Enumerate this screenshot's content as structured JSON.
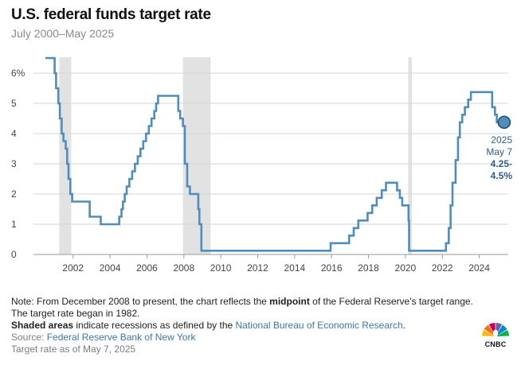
{
  "title": "U.S. federal funds target rate",
  "subtitle": "July 2000–May 2025",
  "chart_data": {
    "type": "line",
    "title": "U.S. federal funds target rate",
    "subtitle": "July 2000–May 2025",
    "xlabel": "",
    "ylabel": "",
    "xlim": [
      2000.5,
      2025.4
    ],
    "ylim": [
      0,
      6.5
    ],
    "y_ticks": [
      0,
      1,
      2,
      3,
      4,
      5,
      6
    ],
    "y_tick_labels": [
      "0",
      "1",
      "2",
      "3",
      "4",
      "5",
      "6%"
    ],
    "x_ticks": [
      2002,
      2004,
      2006,
      2008,
      2010,
      2012,
      2014,
      2016,
      2018,
      2020,
      2022,
      2024
    ],
    "x_tick_labels": [
      "2002",
      "2004",
      "2006",
      "2008",
      "2010",
      "2012",
      "2014",
      "2016",
      "2018",
      "2020",
      "2022",
      "2024"
    ],
    "grid": "horizontal",
    "recessions": [
      [
        2001.25,
        2001.9
      ],
      [
        2007.95,
        2009.45
      ],
      [
        2020.15,
        2020.35
      ]
    ],
    "series": [
      {
        "name": "Federal funds target rate",
        "color": "#4f8dbd",
        "points": [
          [
            2000.5,
            6.5
          ],
          [
            2001.0,
            6.5
          ],
          [
            2001.0,
            6.0
          ],
          [
            2001.08,
            6.0
          ],
          [
            2001.08,
            5.5
          ],
          [
            2001.2,
            5.5
          ],
          [
            2001.2,
            5.0
          ],
          [
            2001.28,
            5.0
          ],
          [
            2001.28,
            4.5
          ],
          [
            2001.38,
            4.5
          ],
          [
            2001.38,
            4.0
          ],
          [
            2001.48,
            4.0
          ],
          [
            2001.48,
            3.75
          ],
          [
            2001.6,
            3.75
          ],
          [
            2001.6,
            3.5
          ],
          [
            2001.68,
            3.5
          ],
          [
            2001.68,
            3.0
          ],
          [
            2001.75,
            3.0
          ],
          [
            2001.75,
            2.5
          ],
          [
            2001.85,
            2.5
          ],
          [
            2001.85,
            2.0
          ],
          [
            2001.95,
            2.0
          ],
          [
            2001.95,
            1.75
          ],
          [
            2002.9,
            1.75
          ],
          [
            2002.9,
            1.25
          ],
          [
            2003.5,
            1.25
          ],
          [
            2003.5,
            1.0
          ],
          [
            2004.5,
            1.0
          ],
          [
            2004.5,
            1.25
          ],
          [
            2004.62,
            1.25
          ],
          [
            2004.62,
            1.5
          ],
          [
            2004.7,
            1.5
          ],
          [
            2004.7,
            1.75
          ],
          [
            2004.8,
            1.75
          ],
          [
            2004.8,
            2.0
          ],
          [
            2004.9,
            2.0
          ],
          [
            2004.9,
            2.25
          ],
          [
            2005.05,
            2.25
          ],
          [
            2005.05,
            2.5
          ],
          [
            2005.2,
            2.5
          ],
          [
            2005.2,
            2.75
          ],
          [
            2005.35,
            2.75
          ],
          [
            2005.35,
            3.0
          ],
          [
            2005.5,
            3.0
          ],
          [
            2005.5,
            3.25
          ],
          [
            2005.65,
            3.25
          ],
          [
            2005.65,
            3.5
          ],
          [
            2005.8,
            3.5
          ],
          [
            2005.8,
            3.75
          ],
          [
            2005.95,
            3.75
          ],
          [
            2005.95,
            4.0
          ],
          [
            2006.1,
            4.0
          ],
          [
            2006.1,
            4.25
          ],
          [
            2006.25,
            4.25
          ],
          [
            2006.25,
            4.5
          ],
          [
            2006.4,
            4.5
          ],
          [
            2006.4,
            4.75
          ],
          [
            2006.5,
            4.75
          ],
          [
            2006.5,
            5.0
          ],
          [
            2006.6,
            5.0
          ],
          [
            2006.6,
            5.25
          ],
          [
            2007.7,
            5.25
          ],
          [
            2007.7,
            4.75
          ],
          [
            2007.8,
            4.75
          ],
          [
            2007.8,
            4.5
          ],
          [
            2007.95,
            4.5
          ],
          [
            2007.95,
            4.25
          ],
          [
            2008.05,
            4.25
          ],
          [
            2008.05,
            3.0
          ],
          [
            2008.18,
            3.0
          ],
          [
            2008.18,
            2.25
          ],
          [
            2008.33,
            2.25
          ],
          [
            2008.33,
            2.0
          ],
          [
            2008.78,
            2.0
          ],
          [
            2008.78,
            1.5
          ],
          [
            2008.84,
            1.5
          ],
          [
            2008.84,
            1.0
          ],
          [
            2008.95,
            1.0
          ],
          [
            2008.95,
            0.125
          ],
          [
            2015.95,
            0.125
          ],
          [
            2015.95,
            0.375
          ],
          [
            2016.95,
            0.375
          ],
          [
            2016.95,
            0.625
          ],
          [
            2017.2,
            0.625
          ],
          [
            2017.2,
            0.875
          ],
          [
            2017.45,
            0.875
          ],
          [
            2017.45,
            1.125
          ],
          [
            2017.95,
            1.125
          ],
          [
            2017.95,
            1.375
          ],
          [
            2018.2,
            1.375
          ],
          [
            2018.2,
            1.625
          ],
          [
            2018.45,
            1.625
          ],
          [
            2018.45,
            1.875
          ],
          [
            2018.72,
            1.875
          ],
          [
            2018.72,
            2.125
          ],
          [
            2018.95,
            2.125
          ],
          [
            2018.95,
            2.375
          ],
          [
            2019.55,
            2.375
          ],
          [
            2019.55,
            2.125
          ],
          [
            2019.7,
            2.125
          ],
          [
            2019.7,
            1.875
          ],
          [
            2019.83,
            1.875
          ],
          [
            2019.83,
            1.625
          ],
          [
            2020.17,
            1.625
          ],
          [
            2020.17,
            1.125
          ],
          [
            2020.2,
            1.125
          ],
          [
            2020.2,
            0.125
          ],
          [
            2022.2,
            0.125
          ],
          [
            2022.2,
            0.375
          ],
          [
            2022.35,
            0.375
          ],
          [
            2022.35,
            0.875
          ],
          [
            2022.45,
            0.875
          ],
          [
            2022.45,
            1.625
          ],
          [
            2022.55,
            1.625
          ],
          [
            2022.55,
            2.375
          ],
          [
            2022.72,
            2.375
          ],
          [
            2022.72,
            3.125
          ],
          [
            2022.85,
            3.125
          ],
          [
            2022.85,
            3.875
          ],
          [
            2022.95,
            3.875
          ],
          [
            2022.95,
            4.375
          ],
          [
            2023.08,
            4.375
          ],
          [
            2023.08,
            4.625
          ],
          [
            2023.22,
            4.625
          ],
          [
            2023.22,
            4.875
          ],
          [
            2023.4,
            4.875
          ],
          [
            2023.4,
            5.125
          ],
          [
            2023.55,
            5.125
          ],
          [
            2023.55,
            5.375
          ],
          [
            2024.7,
            5.375
          ],
          [
            2024.7,
            4.875
          ],
          [
            2024.85,
            4.875
          ],
          [
            2024.85,
            4.625
          ],
          [
            2024.95,
            4.625
          ],
          [
            2024.95,
            4.375
          ],
          [
            2025.35,
            4.375
          ]
        ]
      }
    ],
    "annotation": {
      "year": "2025",
      "date": "May 7",
      "value_line1": "4.25-",
      "value_line2": "4.5%",
      "x": 2025.35,
      "y": 4.375
    }
  },
  "notes": {
    "note_prefix": "Note: From December 2008 to present, the chart reflects the ",
    "note_bold": "midpoint",
    "note_suffix": " of the Federal Reserve's target range. The target rate began in 1982.",
    "shaded_bold": "Shaded areas",
    "shaded_text": " indicate recessions as defined by the ",
    "nber_link": "National Bureau of Economic Research",
    "shaded_end": ".",
    "source_label": "Source: ",
    "source_link": "Federal Reserve Bank of New York",
    "asof": "Target rate as of May 7, 2025"
  },
  "logo": {
    "text": "CNBC",
    "colors": [
      "#fcb711",
      "#f37021",
      "#cc004c",
      "#6460aa",
      "#0089d0",
      "#0db14b"
    ]
  }
}
